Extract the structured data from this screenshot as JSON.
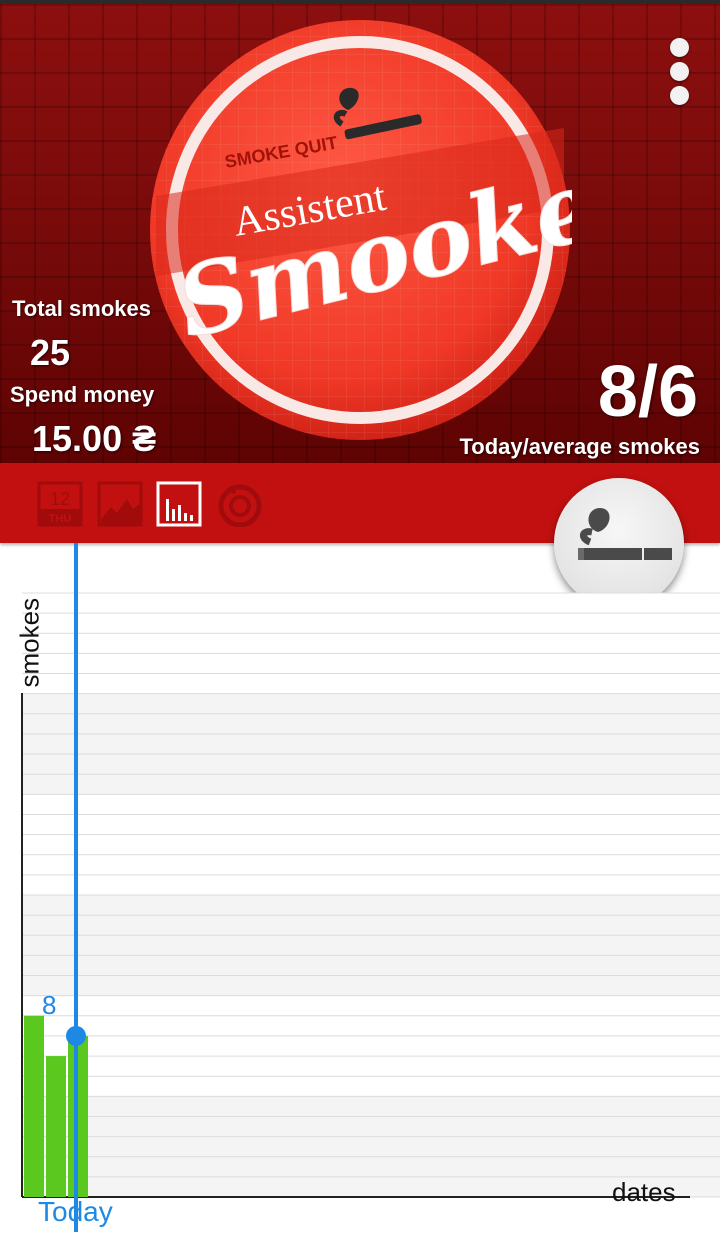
{
  "app": {
    "name": "Assistent Smooker",
    "logo_top": "SMOKE QUIT",
    "logo_mid": "Assistent",
    "logo_main": "Smooker"
  },
  "stats": {
    "total_label": "Total smokes",
    "total_value": "25",
    "money_label": "Spend money",
    "money_value": "15.00 ₴",
    "ratio_value": "8/6",
    "ratio_label": "Today/average smokes"
  },
  "tabs": [
    {
      "name": "calendar",
      "icon": "calendar-icon",
      "day": "12",
      "weekday": "THU",
      "active": false
    },
    {
      "name": "line-chart",
      "icon": "line-chart-icon",
      "active": false
    },
    {
      "name": "bar-chart",
      "icon": "bar-chart-icon",
      "active": true
    },
    {
      "name": "timer",
      "icon": "timer-icon",
      "active": false
    }
  ],
  "fab": {
    "icon": "cigarette-icon"
  },
  "menu": {
    "icon": "more-vert-icon"
  },
  "colors": {
    "accent": "#c21010",
    "bar": "#5ac81e",
    "today": "#1e88e5",
    "header_dark": "#6d0606"
  },
  "chart_data": {
    "type": "bar",
    "ylabel": "smokes",
    "xlabel": "dates",
    "today_label": "Today",
    "highlight_value": "8",
    "bars": [
      {
        "value": 9
      },
      {
        "value": 7
      },
      {
        "value": 8,
        "today": true
      }
    ],
    "ylim": [
      0,
      30
    ]
  }
}
